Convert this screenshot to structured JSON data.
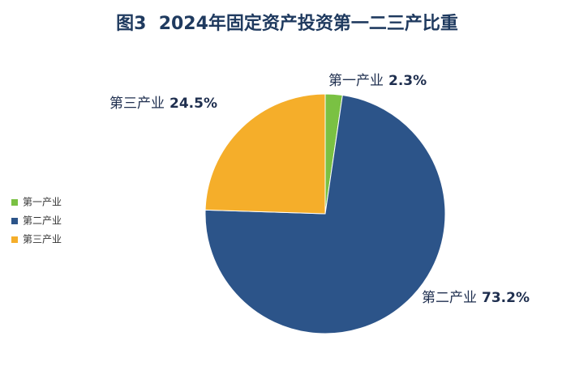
{
  "chart_data": {
    "type": "pie",
    "title": "图3  2024年固定资产投资第一二三产比重",
    "categories": [
      "第一产业",
      "第二产业",
      "第三产业"
    ],
    "values": [
      2.3,
      73.2,
      24.5
    ],
    "value_labels": [
      "2.3%",
      "73.2%",
      "24.5%"
    ],
    "colors": [
      "#7ac143",
      "#2c5489",
      "#f5ae2a"
    ],
    "legend": "left"
  }
}
